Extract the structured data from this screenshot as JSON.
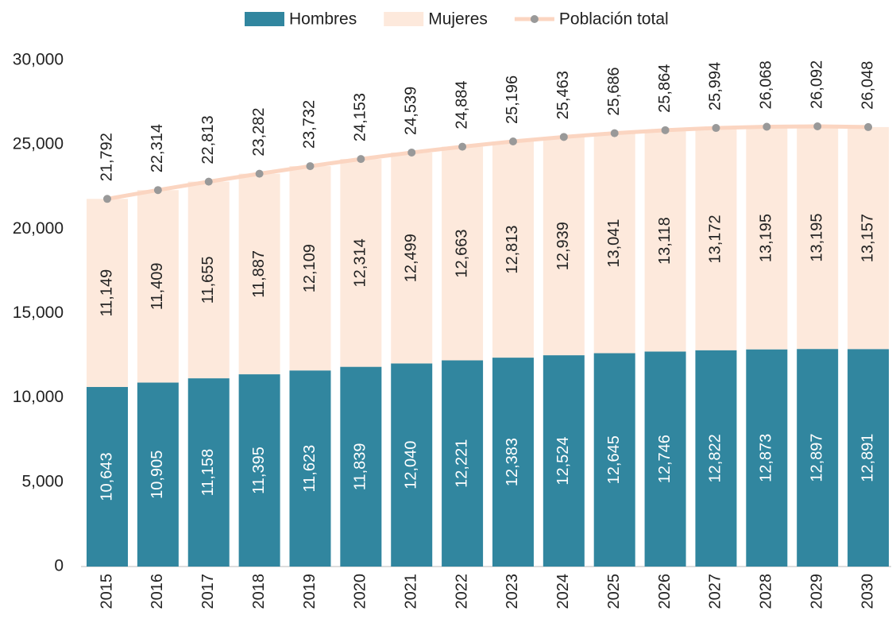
{
  "chart_data": {
    "type": "stacked_bar_line",
    "categories": [
      "2015",
      "2016",
      "2017",
      "2018",
      "2019",
      "2020",
      "2021",
      "2022",
      "2023",
      "2024",
      "2025",
      "2026",
      "2027",
      "2028",
      "2029",
      "2030"
    ],
    "series": [
      {
        "name": "Hombres",
        "type": "bar",
        "color": "#31869f",
        "values": [
          10643,
          10905,
          11158,
          11395,
          11623,
          11839,
          12040,
          12221,
          12383,
          12524,
          12645,
          12746,
          12822,
          12873,
          12897,
          12891
        ],
        "value_labels": [
          "10,643",
          "10,905",
          "11,158",
          "11,395",
          "11,623",
          "11,839",
          "12,040",
          "12,221",
          "12,383",
          "12,524",
          "12,645",
          "12,746",
          "12,822",
          "12,873",
          "12,897",
          "12,891"
        ]
      },
      {
        "name": "Mujeres",
        "type": "bar",
        "color": "#fde9dc",
        "values": [
          11149,
          11409,
          11655,
          11887,
          12109,
          12314,
          12499,
          12663,
          12813,
          12939,
          13041,
          13118,
          13172,
          13195,
          13195,
          13157
        ],
        "value_labels": [
          "11,149",
          "11,409",
          "11,655",
          "11,887",
          "12,109",
          "12,314",
          "12,499",
          "12,663",
          "12,813",
          "12,939",
          "13,041",
          "13,118",
          "13,172",
          "13,195",
          "13,195",
          "13,157"
        ]
      },
      {
        "name": "Población total",
        "type": "line",
        "color": "#fbd5c1",
        "marker_color": "#999999",
        "values": [
          21792,
          22314,
          22813,
          23282,
          23732,
          24153,
          24539,
          24884,
          25196,
          25463,
          25686,
          25864,
          25994,
          26068,
          26092,
          26048
        ],
        "value_labels": [
          "21,792",
          "22,314",
          "22,813",
          "23,282",
          "23,732",
          "24,153",
          "24,539",
          "24,884",
          "25,196",
          "25,463",
          "25,686",
          "25,864",
          "25,994",
          "26,068",
          "26,092",
          "26,048"
        ]
      }
    ],
    "ylim": [
      0,
      30000
    ],
    "yticks": [
      0,
      {
        "value": 5000,
        "label": "5,000"
      },
      {
        "value": 10000,
        "label": "10,000"
      },
      {
        "value": 15000,
        "label": "15,000"
      },
      {
        "value": 20000,
        "label": "20,000"
      },
      {
        "value": 25000,
        "label": "25,000"
      },
      {
        "value": 30000,
        "label": "30,000"
      }
    ],
    "grid": false,
    "legend": "top"
  }
}
